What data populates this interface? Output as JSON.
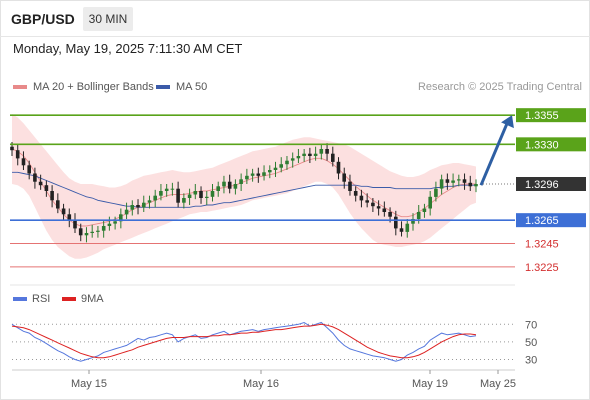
{
  "header": {
    "pair": "GBP/USD",
    "timeframe": "30 MIN",
    "datetime": "Monday, May 19, 2025 7:11:30 AM CET"
  },
  "colors": {
    "bullish": "#2e7d32",
    "bearish": "#222222",
    "bollinger_band": "#fbd5d5",
    "ma20": "#e88a8a",
    "ma50": "#3b5ba9",
    "resistance": "#5aa31a",
    "support_blue": "#3d6fd6",
    "support_red": "#e57373",
    "last_price_bg": "#333333",
    "rsi": "#5577dd",
    "rsi_ma": "#dd2222",
    "arrow": "#2e5fa3"
  },
  "chart_data": [
    {
      "type": "candlestick",
      "legend": [
        {
          "label": "MA 20 + Bollinger Bands",
          "color": "#e88a8a"
        },
        {
          "label": "MA 50",
          "color": "#3b5ba9"
        }
      ],
      "credit": "Research © 2025 Trading Central",
      "ylim": [
        1.3212,
        1.3368
      ],
      "x_ticks": [
        "May 15",
        "May 16",
        "May 19",
        "May 25"
      ],
      "last_price": "1.3296",
      "levels": [
        {
          "value": "1.3355",
          "kind": "resistance",
          "style": "line-label"
        },
        {
          "value": "1.3330",
          "kind": "resistance",
          "style": "line-label"
        },
        {
          "value": "1.3265",
          "kind": "pivot",
          "style": "line-label"
        },
        {
          "value": "1.3245",
          "kind": "support",
          "style": "text"
        },
        {
          "value": "1.3225",
          "kind": "support",
          "style": "text"
        }
      ],
      "forecast_arrow": {
        "from": 1.3295,
        "to": 1.3355
      },
      "close": [
        1.3325,
        1.3318,
        1.3312,
        1.3305,
        1.3298,
        1.3295,
        1.329,
        1.3282,
        1.3275,
        1.327,
        1.3265,
        1.3258,
        1.3252,
        1.3254,
        1.3255,
        1.3256,
        1.326,
        1.3262,
        1.3264,
        1.327,
        1.3274,
        1.3278,
        1.3276,
        1.328,
        1.3282,
        1.3286,
        1.329,
        1.3292,
        1.3292,
        1.328,
        1.3284,
        1.3287,
        1.329,
        1.3284,
        1.3285,
        1.329,
        1.3294,
        1.3298,
        1.3292,
        1.3296,
        1.33,
        1.3303,
        1.3305,
        1.3303,
        1.3306,
        1.3308,
        1.331,
        1.3313,
        1.3316,
        1.3318,
        1.332,
        1.3322,
        1.332,
        1.3322,
        1.3326,
        1.3322,
        1.3315,
        1.3305,
        1.3298,
        1.329,
        1.3286,
        1.3282,
        1.328,
        1.3277,
        1.3275,
        1.3272,
        1.3268,
        1.3258,
        1.3255,
        1.3262,
        1.3266,
        1.3272,
        1.3275,
        1.3285,
        1.3292,
        1.33,
        1.3297,
        1.3299,
        1.33,
        1.3297,
        1.3294,
        1.3296
      ],
      "ma20": [
        1.3326,
        1.3324,
        1.332,
        1.3314,
        1.3306,
        1.3298,
        1.329,
        1.3282,
        1.3276,
        1.327,
        1.3265,
        1.3262,
        1.326,
        1.326,
        1.3261,
        1.3262,
        1.3263,
        1.3264,
        1.3266,
        1.3268,
        1.3271,
        1.3274,
        1.3276,
        1.3278,
        1.328,
        1.3282,
        1.3284,
        1.3286,
        1.3287,
        1.3287,
        1.3287,
        1.3288,
        1.3289,
        1.329,
        1.329,
        1.3291,
        1.3292,
        1.3293,
        1.3294,
        1.3295,
        1.3297,
        1.3299,
        1.3301,
        1.3302,
        1.3303,
        1.3304,
        1.3305,
        1.3307,
        1.3309,
        1.3311,
        1.3313,
        1.3315,
        1.3317,
        1.3318,
        1.3318,
        1.3316,
        1.3313,
        1.3309,
        1.3304,
        1.3299,
        1.3294,
        1.329,
        1.3286,
        1.3282,
        1.3279,
        1.3276,
        1.3273,
        1.327,
        1.3268,
        1.3268,
        1.3269,
        1.3272,
        1.3275,
        1.3279,
        1.3283,
        1.3287,
        1.329,
        1.3293,
        1.3295,
        1.3296,
        1.3296,
        1.3296
      ],
      "band_upper": [
        1.3356,
        1.3353,
        1.3348,
        1.3342,
        1.3336,
        1.333,
        1.3324,
        1.3318,
        1.3312,
        1.3306,
        1.3301,
        1.3298,
        1.3296,
        1.3296,
        1.3296,
        1.3295,
        1.3294,
        1.3293,
        1.3293,
        1.3294,
        1.3296,
        1.3299,
        1.3301,
        1.3303,
        1.3304,
        1.3305,
        1.3306,
        1.3307,
        1.3308,
        1.3307,
        1.3306,
        1.3306,
        1.3307,
        1.3308,
        1.3309,
        1.331,
        1.3312,
        1.3314,
        1.3316,
        1.3318,
        1.332,
        1.3322,
        1.3324,
        1.3325,
        1.3326,
        1.3327,
        1.3328,
        1.333,
        1.3332,
        1.3334,
        1.3335,
        1.3336,
        1.3336,
        1.3335,
        1.3334,
        1.3333,
        1.3332,
        1.3331,
        1.333,
        1.3328,
        1.3325,
        1.3322,
        1.3319,
        1.3316,
        1.3313,
        1.331,
        1.3307,
        1.3305,
        1.3303,
        1.3302,
        1.3302,
        1.3303,
        1.3305,
        1.3308,
        1.331,
        1.3312,
        1.3313,
        1.3314,
        1.3314,
        1.3313,
        1.3312,
        1.3311
      ],
      "band_lower": [
        1.3296,
        1.3295,
        1.3292,
        1.3286,
        1.3276,
        1.3266,
        1.3256,
        1.3248,
        1.3242,
        1.3238,
        1.3234,
        1.3232,
        1.3232,
        1.3233,
        1.3235,
        1.3237,
        1.324,
        1.3242,
        1.3244,
        1.3246,
        1.3248,
        1.325,
        1.3252,
        1.3254,
        1.3256,
        1.3258,
        1.326,
        1.3262,
        1.3264,
        1.3266,
        1.3268,
        1.327,
        1.3271,
        1.3272,
        1.3272,
        1.3273,
        1.3274,
        1.3275,
        1.3276,
        1.3277,
        1.3278,
        1.328,
        1.3282,
        1.3283,
        1.3284,
        1.3285,
        1.3286,
        1.3287,
        1.3288,
        1.329,
        1.3292,
        1.3294,
        1.3296,
        1.3298,
        1.3298,
        1.3296,
        1.3293,
        1.3287,
        1.3279,
        1.3271,
        1.3264,
        1.3258,
        1.3253,
        1.3248,
        1.3245,
        1.3244,
        1.3243,
        1.3242,
        1.3242,
        1.3243,
        1.3244,
        1.3245,
        1.3247,
        1.325,
        1.3254,
        1.3258,
        1.3262,
        1.3266,
        1.327,
        1.3274,
        1.3278,
        1.328
      ],
      "ma50": [
        1.3306,
        1.3306,
        1.3305,
        1.3304,
        1.3303,
        1.3301,
        1.3299,
        1.3297,
        1.3295,
        1.3293,
        1.3291,
        1.3289,
        1.3287,
        1.3285,
        1.3284,
        1.3282,
        1.3281,
        1.328,
        1.3279,
        1.3278,
        1.3277,
        1.3277,
        1.3276,
        1.3276,
        1.3276,
        1.3276,
        1.3276,
        1.3276,
        1.3276,
        1.3276,
        1.3276,
        1.3276,
        1.3277,
        1.3277,
        1.3278,
        1.3278,
        1.3279,
        1.328,
        1.328,
        1.3281,
        1.3282,
        1.3283,
        1.3284,
        1.3285,
        1.3286,
        1.3287,
        1.3288,
        1.3289,
        1.329,
        1.3291,
        1.3292,
        1.3293,
        1.3294,
        1.3295,
        1.3295,
        1.3295,
        1.3295,
        1.3295,
        1.3295,
        1.3295,
        1.3295,
        1.3294,
        1.3294,
        1.3293,
        1.3293,
        1.3293,
        1.3293,
        1.3292,
        1.3292,
        1.3292,
        1.3292,
        1.3292,
        1.3292,
        1.3292,
        1.3293,
        1.3293,
        1.3294,
        1.3294,
        1.3295,
        1.3295,
        1.3295,
        1.3295
      ]
    },
    {
      "type": "line",
      "legend": [
        {
          "label": "RSI",
          "color": "#5577dd"
        },
        {
          "label": "9MA",
          "color": "#dd2222"
        }
      ],
      "ylim": [
        18,
        84
      ],
      "y_ticks": [
        70,
        50,
        30
      ],
      "series": [
        {
          "name": "RSI",
          "values": [
            70,
            66,
            62,
            60,
            55,
            52,
            48,
            44,
            40,
            37,
            33,
            30,
            28,
            30,
            32,
            34,
            38,
            40,
            42,
            44,
            46,
            50,
            54,
            52,
            55,
            56,
            58,
            60,
            58,
            50,
            54,
            56,
            58,
            54,
            55,
            58,
            60,
            62,
            58,
            60,
            62,
            63,
            64,
            62,
            64,
            65,
            66,
            67,
            68,
            69,
            70,
            72,
            68,
            70,
            72,
            66,
            60,
            52,
            46,
            42,
            40,
            38,
            36,
            34,
            33,
            32,
            30,
            28,
            30,
            35,
            38,
            42,
            45,
            52,
            56,
            60,
            58,
            59,
            60,
            58,
            56,
            57
          ]
        },
        {
          "name": "9MA",
          "values": [
            68,
            67,
            66,
            64,
            61,
            58,
            55,
            52,
            49,
            46,
            43,
            40,
            37,
            35,
            33,
            32,
            32,
            33,
            35,
            37,
            39,
            41,
            44,
            46,
            48,
            50,
            52,
            54,
            55,
            55,
            55,
            56,
            56,
            56,
            56,
            57,
            57,
            58,
            58,
            59,
            60,
            60,
            61,
            61,
            62,
            63,
            64,
            64,
            65,
            66,
            67,
            68,
            68,
            69,
            70,
            69,
            67,
            64,
            60,
            56,
            52,
            48,
            44,
            41,
            38,
            36,
            34,
            33,
            32,
            32,
            33,
            35,
            38,
            42,
            46,
            50,
            53,
            56,
            58,
            59,
            59,
            58
          ]
        }
      ]
    }
  ]
}
